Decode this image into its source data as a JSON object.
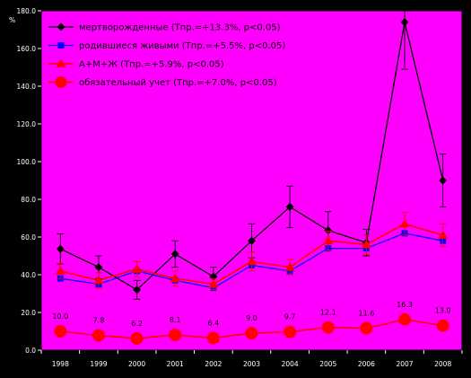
{
  "chart_data": {
    "type": "line",
    "title": "",
    "xlabel": "",
    "ylabel": "",
    "y_unit": "%",
    "ylim": [
      0,
      180
    ],
    "yticks": [
      "0.0",
      "20.0",
      "40.0",
      "60.0",
      "80.0",
      "100.0",
      "120.0",
      "140.0",
      "160.0",
      "180.0"
    ],
    "categories": [
      "1998",
      "1999",
      "2000",
      "2001",
      "2002",
      "2003",
      "2004",
      "2005",
      "2006",
      "2007",
      "2008"
    ],
    "grid": false,
    "legend_position": "top-left",
    "colors": {
      "background": "#000000",
      "plot_area": "#ff00ff",
      "series_1": "#000000",
      "series_2": "#0000ff",
      "series_3": "#ff0000",
      "series_4": "#ff0000"
    },
    "series": [
      {
        "name": "мертворожденные (Тпр.=+13.3%, p<0.05)",
        "marker": "diamond",
        "values": [
          53.7,
          44.0,
          32.0,
          51.0,
          39.0,
          58.0,
          76.0,
          63.5,
          57.0,
          174.0,
          90.0
        ],
        "error": [
          8,
          6,
          5,
          7,
          5,
          9,
          11,
          10,
          7,
          25,
          14
        ]
      },
      {
        "name": "родившиеся живыми (Тпр.=+5.5%, p<0.05)",
        "marker": "square",
        "values": [
          38.0,
          35.0,
          42.0,
          37.0,
          33.0,
          45.0,
          42.0,
          54.0,
          54.0,
          62.0,
          58.0
        ],
        "error": []
      },
      {
        "name": "А+М+Ж (Тпр.=+5.9%, p<0.05)",
        "marker": "triangle",
        "values": [
          42.0,
          37.0,
          43.0,
          38.0,
          35.0,
          47.0,
          44.0,
          58.0,
          56.0,
          67.0,
          61.0
        ],
        "error": [
          4,
          4,
          4,
          4,
          3,
          5,
          4,
          5,
          5,
          6,
          6
        ]
      },
      {
        "name": "обязательный учет (Тпр.=+7.0%, p<0.05)",
        "marker": "circle",
        "values": [
          10.0,
          7.8,
          6.2,
          8.1,
          6.4,
          9.0,
          9.7,
          12.1,
          11.6,
          16.3,
          13.0
        ],
        "data_labels": [
          "10.0",
          "7.8",
          "6.2",
          "8.1",
          "6.4",
          "9.0",
          "9.7",
          "12.1",
          "11.6",
          "16.3",
          "13.0"
        ],
        "error": []
      }
    ]
  }
}
